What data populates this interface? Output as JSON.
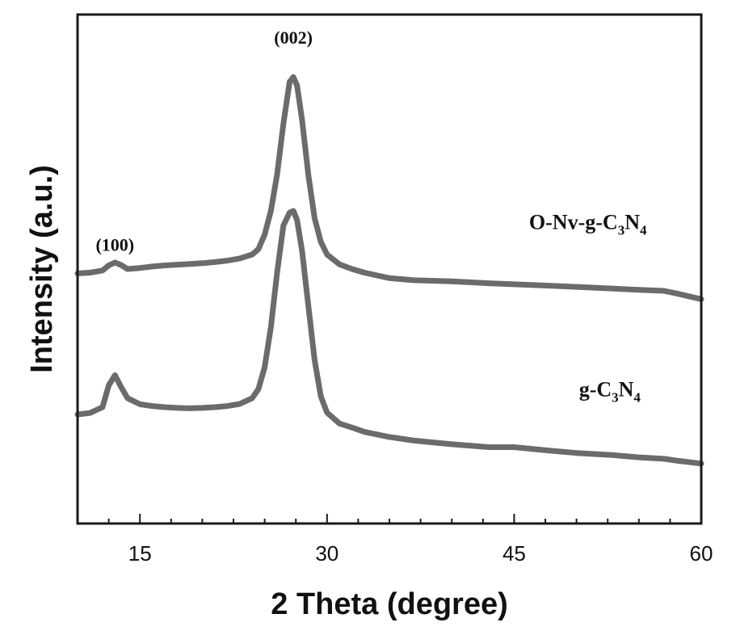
{
  "chart_data": {
    "type": "line",
    "xlabel": "2 Theta (degree)",
    "ylabel": "Intensity (a.u.)",
    "xlim": [
      10,
      60
    ],
    "xticks": [
      15,
      30,
      45,
      60
    ],
    "y_units": "a.u. (no numeric ticks)",
    "grid": false,
    "series": [
      {
        "name": "O-Nv-g-C3N4",
        "label_parts": [
          "O-Nv-g-C",
          "3",
          "N",
          "4"
        ],
        "x": [
          10,
          11,
          12,
          12.5,
          13,
          13.5,
          14,
          15,
          16,
          17,
          18,
          19,
          20,
          21,
          22,
          23,
          24,
          24.5,
          25,
          25.5,
          26,
          26.5,
          27,
          27.3,
          27.6,
          28,
          28.5,
          29,
          29.5,
          30,
          31,
          32,
          33,
          35,
          37,
          40,
          43,
          45,
          48,
          50,
          53,
          55,
          57,
          58,
          60
        ],
        "y": [
          28.8,
          29.0,
          29.6,
          31.0,
          31.8,
          31.1,
          30.0,
          30.3,
          30.7,
          31.0,
          31.2,
          31.4,
          31.6,
          31.9,
          32.3,
          32.9,
          34.0,
          35.5,
          39.5,
          46.0,
          56.0,
          70.0,
          81.5,
          82.8,
          80.5,
          71.0,
          56.0,
          44.0,
          37.5,
          34.0,
          31.3,
          30.0,
          29.0,
          27.5,
          26.9,
          26.6,
          26.1,
          25.8,
          25.4,
          25.1,
          24.6,
          24.3,
          24.0,
          23.3,
          21.7
        ]
      },
      {
        "name": "g-C3N4",
        "label_parts": [
          "g-C",
          "3",
          "N",
          "4"
        ],
        "x": [
          10,
          11,
          12,
          12.5,
          13,
          13.5,
          14,
          15,
          16,
          17,
          18,
          19,
          20,
          21,
          22,
          23,
          24,
          24.5,
          25,
          25.5,
          26,
          26.5,
          27,
          27.3,
          27.6,
          28,
          28.5,
          29,
          29.5,
          30,
          31,
          32,
          33,
          35,
          37,
          40,
          43,
          45,
          48,
          50,
          53,
          55,
          57,
          58,
          60
        ],
        "y": [
          -10.0,
          -9.6,
          -8.0,
          -2.0,
          0.8,
          -2.5,
          -5.5,
          -7.2,
          -7.7,
          -8.0,
          -8.2,
          -8.3,
          -8.2,
          -8.0,
          -7.7,
          -7.1,
          -5.5,
          -3.0,
          3.0,
          14.0,
          29.0,
          42.0,
          45.5,
          46.0,
          43.5,
          35.0,
          20.0,
          5.0,
          -5.0,
          -9.5,
          -12.5,
          -13.6,
          -14.8,
          -16.2,
          -17.2,
          -18.2,
          -19.0,
          -19.0,
          -20.0,
          -20.6,
          -21.2,
          -21.8,
          -22.2,
          -22.7,
          -23.5
        ]
      }
    ],
    "annotations": [
      {
        "text": "(100)",
        "x": 13.0,
        "y": 35
      },
      {
        "text": "(002)",
        "x": 27.3,
        "y": 92
      }
    ],
    "colors": {
      "line": "#6b6b6b",
      "axes": "#1a1a1a"
    }
  }
}
